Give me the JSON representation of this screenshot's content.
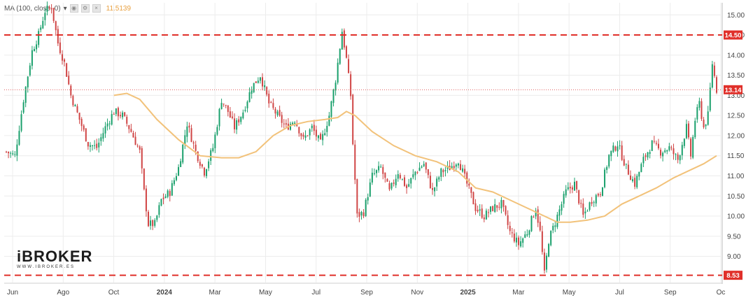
{
  "indicator": {
    "label": "MA (100, close, 0)",
    "caret": "▾",
    "icons": [
      "eye-icon",
      "gear-icon",
      "close-icon"
    ],
    "value": "11.5139"
  },
  "logo": {
    "main": "iBROKER",
    "sub": "WWW.IBROKER.ES"
  },
  "colors": {
    "up": "#1aa06c",
    "down": "#d04545",
    "ma": "#f2c27a",
    "level_line": "#e0302a",
    "price_line": "#e06060",
    "grid": "#ececec",
    "tag": "#e0302a"
  },
  "chart_data": {
    "type": "candlestick",
    "title": "",
    "xlabel": "",
    "ylabel": "",
    "ylim": [
      8.35,
      15.3
    ],
    "y_ticks": [
      "15.00",
      "14.50",
      "14.00",
      "13.50",
      "13.00",
      "12.50",
      "12.00",
      "11.50",
      "11.00",
      "10.50",
      "10.00",
      "9.50",
      "9.00"
    ],
    "x_ticks": [
      "Jun",
      "Ago",
      "Oct",
      "2024",
      "Mar",
      "May",
      "Jul",
      "Sep",
      "Nov",
      "2025",
      "Mar",
      "May",
      "Jul",
      "Sep",
      "Oc"
    ],
    "horizontal_levels": [
      {
        "value": 14.5,
        "label": "14.50"
      },
      {
        "value": 8.53,
        "label": "8.53"
      }
    ],
    "last_price": {
      "value": 13.14,
      "label": "13.14"
    },
    "price_path": [
      [
        0,
        11.6
      ],
      [
        4,
        11.5
      ],
      [
        8,
        12.9
      ],
      [
        12,
        14.1
      ],
      [
        15,
        14.5
      ],
      [
        18,
        15.1
      ],
      [
        21,
        15.2
      ],
      [
        24,
        14.3
      ],
      [
        27,
        13.8
      ],
      [
        30,
        13.0
      ],
      [
        34,
        12.4
      ],
      [
        38,
        11.8
      ],
      [
        42,
        11.7
      ],
      [
        46,
        12.2
      ],
      [
        50,
        12.6
      ],
      [
        54,
        12.5
      ],
      [
        58,
        12.1
      ],
      [
        62,
        11.6
      ],
      [
        64,
        10.6
      ],
      [
        66,
        9.8
      ],
      [
        69,
        9.8
      ],
      [
        72,
        10.4
      ],
      [
        76,
        10.6
      ],
      [
        80,
        11.2
      ],
      [
        84,
        12.3
      ],
      [
        88,
        11.6
      ],
      [
        92,
        11.1
      ],
      [
        96,
        11.7
      ],
      [
        100,
        12.9
      ],
      [
        103,
        12.6
      ],
      [
        106,
        12.2
      ],
      [
        110,
        12.6
      ],
      [
        114,
        13.2
      ],
      [
        118,
        13.5
      ],
      [
        122,
        12.8
      ],
      [
        126,
        12.5
      ],
      [
        130,
        12.2
      ],
      [
        134,
        12.4
      ],
      [
        138,
        11.9
      ],
      [
        142,
        12.2
      ],
      [
        146,
        11.8
      ],
      [
        150,
        12.5
      ],
      [
        153,
        13.4
      ],
      [
        156,
        14.6
      ],
      [
        158,
        13.9
      ],
      [
        160,
        13.0
      ],
      [
        161,
        11.8
      ],
      [
        163,
        10.0
      ],
      [
        166,
        10.1
      ],
      [
        170,
        11.0
      ],
      [
        174,
        11.2
      ],
      [
        178,
        10.6
      ],
      [
        182,
        11.1
      ],
      [
        186,
        10.7
      ],
      [
        190,
        11.1
      ],
      [
        194,
        11.3
      ],
      [
        198,
        10.6
      ],
      [
        202,
        11.1
      ],
      [
        206,
        11.2
      ],
      [
        210,
        11.4
      ],
      [
        214,
        10.8
      ],
      [
        218,
        10.2
      ],
      [
        222,
        10.0
      ],
      [
        226,
        10.2
      ],
      [
        230,
        10.3
      ],
      [
        234,
        9.6
      ],
      [
        238,
        9.3
      ],
      [
        242,
        9.6
      ],
      [
        246,
        10.2
      ],
      [
        248,
        9.6
      ],
      [
        250,
        8.55
      ],
      [
        252,
        9.4
      ],
      [
        256,
        10.0
      ],
      [
        260,
        10.6
      ],
      [
        264,
        10.8
      ],
      [
        268,
        10.0
      ],
      [
        272,
        10.4
      ],
      [
        276,
        10.6
      ],
      [
        280,
        11.5
      ],
      [
        284,
        11.8
      ],
      [
        288,
        11.2
      ],
      [
        292,
        10.8
      ],
      [
        296,
        11.4
      ],
      [
        300,
        11.8
      ],
      [
        304,
        11.6
      ],
      [
        308,
        11.7
      ],
      [
        312,
        11.4
      ],
      [
        316,
        12.2
      ],
      [
        318,
        11.5
      ],
      [
        320,
        12.4
      ],
      [
        322,
        12.8
      ],
      [
        324,
        12.2
      ],
      [
        326,
        12.5
      ],
      [
        328,
        13.8
      ],
      [
        330,
        13.14
      ]
    ],
    "ma_path": [
      [
        50,
        13.0
      ],
      [
        56,
        13.05
      ],
      [
        62,
        12.9
      ],
      [
        70,
        12.4
      ],
      [
        80,
        11.9
      ],
      [
        90,
        11.5
      ],
      [
        100,
        11.45
      ],
      [
        108,
        11.45
      ],
      [
        116,
        11.6
      ],
      [
        124,
        12.0
      ],
      [
        132,
        12.25
      ],
      [
        140,
        12.35
      ],
      [
        148,
        12.4
      ],
      [
        154,
        12.45
      ],
      [
        158,
        12.6
      ],
      [
        162,
        12.5
      ],
      [
        170,
        12.1
      ],
      [
        180,
        11.75
      ],
      [
        190,
        11.5
      ],
      [
        200,
        11.35
      ],
      [
        210,
        11.1
      ],
      [
        218,
        10.7
      ],
      [
        226,
        10.6
      ],
      [
        234,
        10.4
      ],
      [
        242,
        10.2
      ],
      [
        250,
        10.0
      ],
      [
        256,
        9.85
      ],
      [
        262,
        9.85
      ],
      [
        270,
        9.9
      ],
      [
        278,
        10.0
      ],
      [
        286,
        10.3
      ],
      [
        294,
        10.5
      ],
      [
        302,
        10.7
      ],
      [
        310,
        10.95
      ],
      [
        318,
        11.15
      ],
      [
        324,
        11.3
      ],
      [
        330,
        11.5
      ]
    ]
  }
}
